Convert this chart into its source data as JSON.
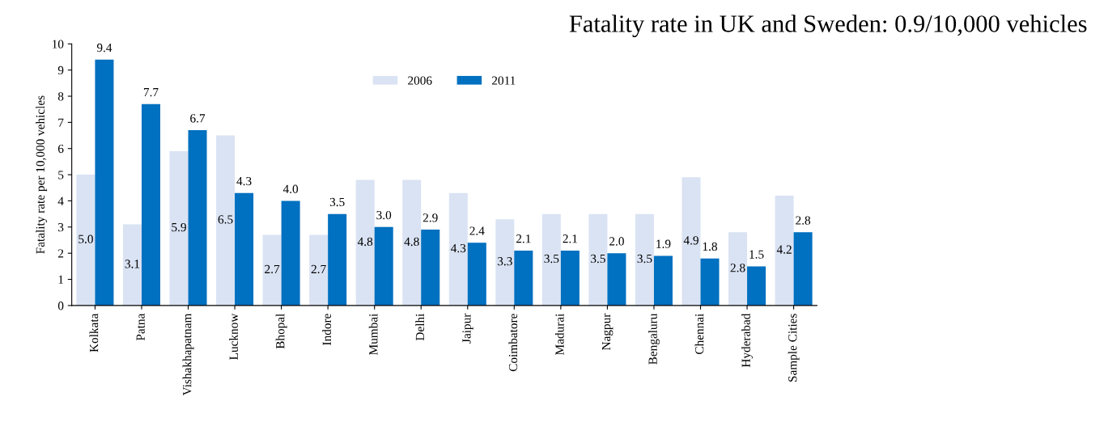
{
  "chart_data": {
    "type": "bar",
    "title": "Fatality rate in UK and Sweden: 0.9/10,000 vehicles",
    "ylabel": "Fatality rate per 10,000 vehicles",
    "categories": [
      "Kolkata",
      "Patna",
      "Vishakhapatnam",
      "Lucknow",
      "Bhopal",
      "Indore",
      "Mumbai",
      "Delhi",
      "Jaipur",
      "Coimbatore",
      "Madurai",
      "Nagpur",
      "Bengaluru",
      "Chennai",
      "Hyderabad",
      "Sample Cities"
    ],
    "series": [
      {
        "name": "2006",
        "color": "#dae3f3",
        "values": [
          5.0,
          3.1,
          5.9,
          6.5,
          2.7,
          2.7,
          4.8,
          4.8,
          4.3,
          3.3,
          3.5,
          3.5,
          3.5,
          4.9,
          2.8,
          4.2
        ],
        "value_labels": [
          "5.0",
          "3.1",
          "5.9",
          "6.5",
          "2.7",
          "2.7",
          "4.8",
          "4.8",
          "4.3",
          "3.3",
          "3.5",
          "3.5",
          "3.5",
          "4.9",
          "2.8",
          "4.2"
        ]
      },
      {
        "name": "2011",
        "color": "#0070c0",
        "values": [
          9.4,
          7.7,
          6.7,
          4.3,
          4.0,
          3.5,
          3.0,
          2.9,
          2.4,
          2.1,
          2.1,
          2.0,
          1.9,
          1.8,
          1.5,
          2.8
        ],
        "value_labels": [
          "9.4",
          "7.7",
          "6.7",
          "4.3",
          "4.0",
          "3.5",
          "3.0",
          "2.9",
          "2.4",
          "2.1",
          "2.1",
          "2.0",
          "1.9",
          "1.8",
          "1.5",
          "2.8"
        ]
      }
    ],
    "ylim": [
      0,
      10
    ],
    "yticks": [
      0,
      1,
      2,
      3,
      4,
      5,
      6,
      7,
      8,
      9,
      10
    ],
    "legend": "top",
    "grid": false
  }
}
